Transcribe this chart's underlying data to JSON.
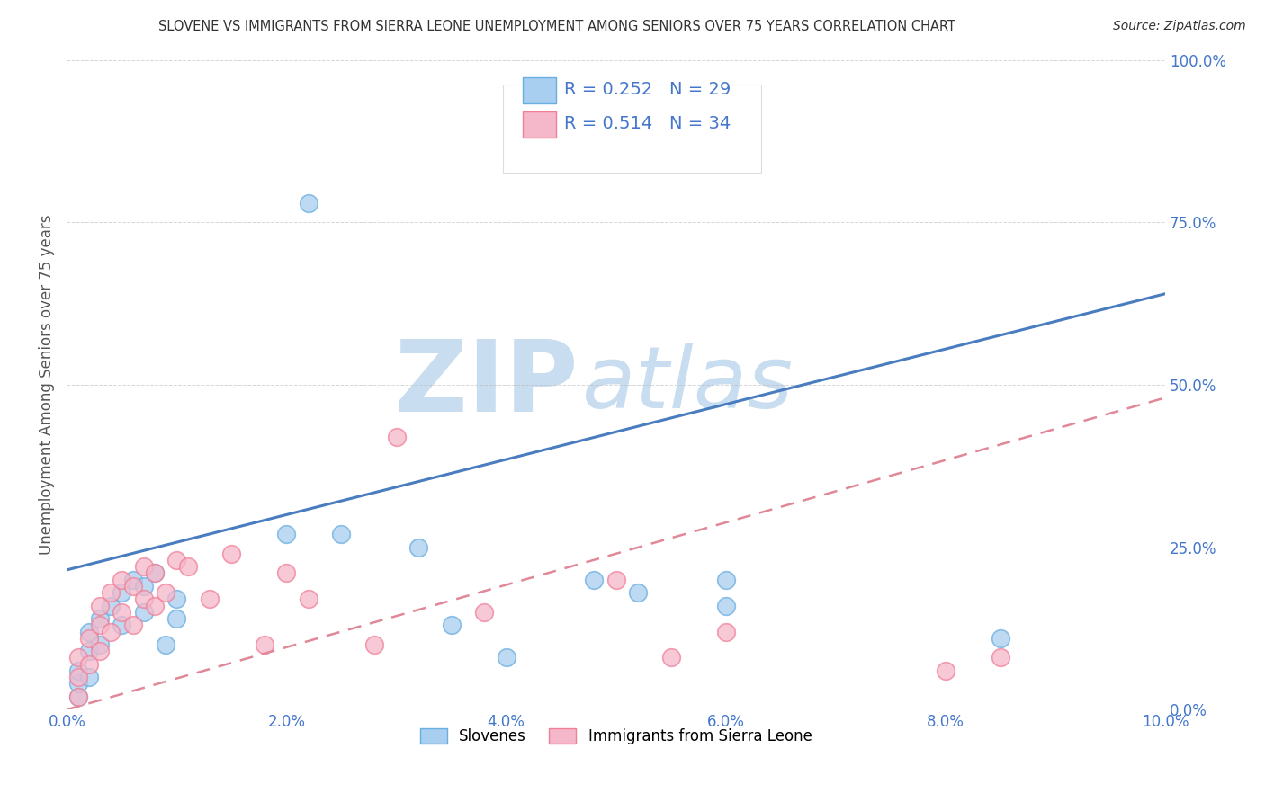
{
  "title": "SLOVENE VS IMMIGRANTS FROM SIERRA LEONE UNEMPLOYMENT AMONG SENIORS OVER 75 YEARS CORRELATION CHART",
  "source": "Source: ZipAtlas.com",
  "ylabel": "Unemployment Among Seniors over 75 years",
  "legend_labels": [
    "Slovenes",
    "Immigrants from Sierra Leone"
  ],
  "r_slovene": 0.252,
  "n_slovene": 29,
  "r_sierra": 0.514,
  "n_sierra": 34,
  "color_slovene": "#A8CEF0",
  "color_sierra": "#F5B8CA",
  "edge_color_slovene": "#6AAEE0",
  "edge_color_sierra": "#F08098",
  "line_color_slovene": "#4A7CC0",
  "line_color_sierra": "#E08898",
  "xlim": [
    0.0,
    0.1
  ],
  "ylim": [
    0.0,
    1.0
  ],
  "xticks": [
    0.0,
    0.02,
    0.04,
    0.06,
    0.08,
    0.1
  ],
  "yticks": [
    0.0,
    0.25,
    0.5,
    0.75,
    1.0
  ],
  "blue_line_x0": 0.0,
  "blue_line_y0": 0.215,
  "blue_line_x1": 0.1,
  "blue_line_y1": 0.64,
  "pink_line_x0": 0.0,
  "pink_line_y0": 0.0,
  "pink_line_x1": 0.1,
  "pink_line_y1": 0.48,
  "watermark": "ZIP",
  "watermark2": "atlas",
  "watermark_color": "#C8DDEF",
  "background_color": "#FFFFFF",
  "grid_color": "#BBBBBB",
  "tick_label_color": "#4477CC",
  "title_color": "#333333",
  "ylabel_color": "#555555",
  "slovene_x": [
    0.001,
    0.001,
    0.001,
    0.002,
    0.002,
    0.002,
    0.003,
    0.003,
    0.004,
    0.005,
    0.005,
    0.006,
    0.007,
    0.007,
    0.008,
    0.009,
    0.01,
    0.01,
    0.02,
    0.022,
    0.025,
    0.035,
    0.04,
    0.048,
    0.052,
    0.06,
    0.085,
    0.06,
    0.032
  ],
  "slovene_y": [
    0.02,
    0.04,
    0.06,
    0.05,
    0.09,
    0.12,
    0.1,
    0.14,
    0.16,
    0.18,
    0.13,
    0.2,
    0.19,
    0.15,
    0.21,
    0.1,
    0.17,
    0.14,
    0.27,
    0.78,
    0.27,
    0.13,
    0.08,
    0.2,
    0.18,
    0.16,
    0.11,
    0.2,
    0.25
  ],
  "sierra_x": [
    0.001,
    0.001,
    0.001,
    0.002,
    0.002,
    0.003,
    0.003,
    0.003,
    0.004,
    0.004,
    0.005,
    0.005,
    0.006,
    0.006,
    0.007,
    0.007,
    0.008,
    0.008,
    0.009,
    0.01,
    0.011,
    0.013,
    0.015,
    0.018,
    0.02,
    0.022,
    0.028,
    0.03,
    0.038,
    0.05,
    0.055,
    0.06,
    0.08,
    0.085
  ],
  "sierra_y": [
    0.02,
    0.05,
    0.08,
    0.07,
    0.11,
    0.09,
    0.13,
    0.16,
    0.12,
    0.18,
    0.15,
    0.2,
    0.13,
    0.19,
    0.17,
    0.22,
    0.16,
    0.21,
    0.18,
    0.23,
    0.22,
    0.17,
    0.24,
    0.1,
    0.21,
    0.17,
    0.1,
    0.42,
    0.15,
    0.2,
    0.08,
    0.12,
    0.06,
    0.08
  ]
}
